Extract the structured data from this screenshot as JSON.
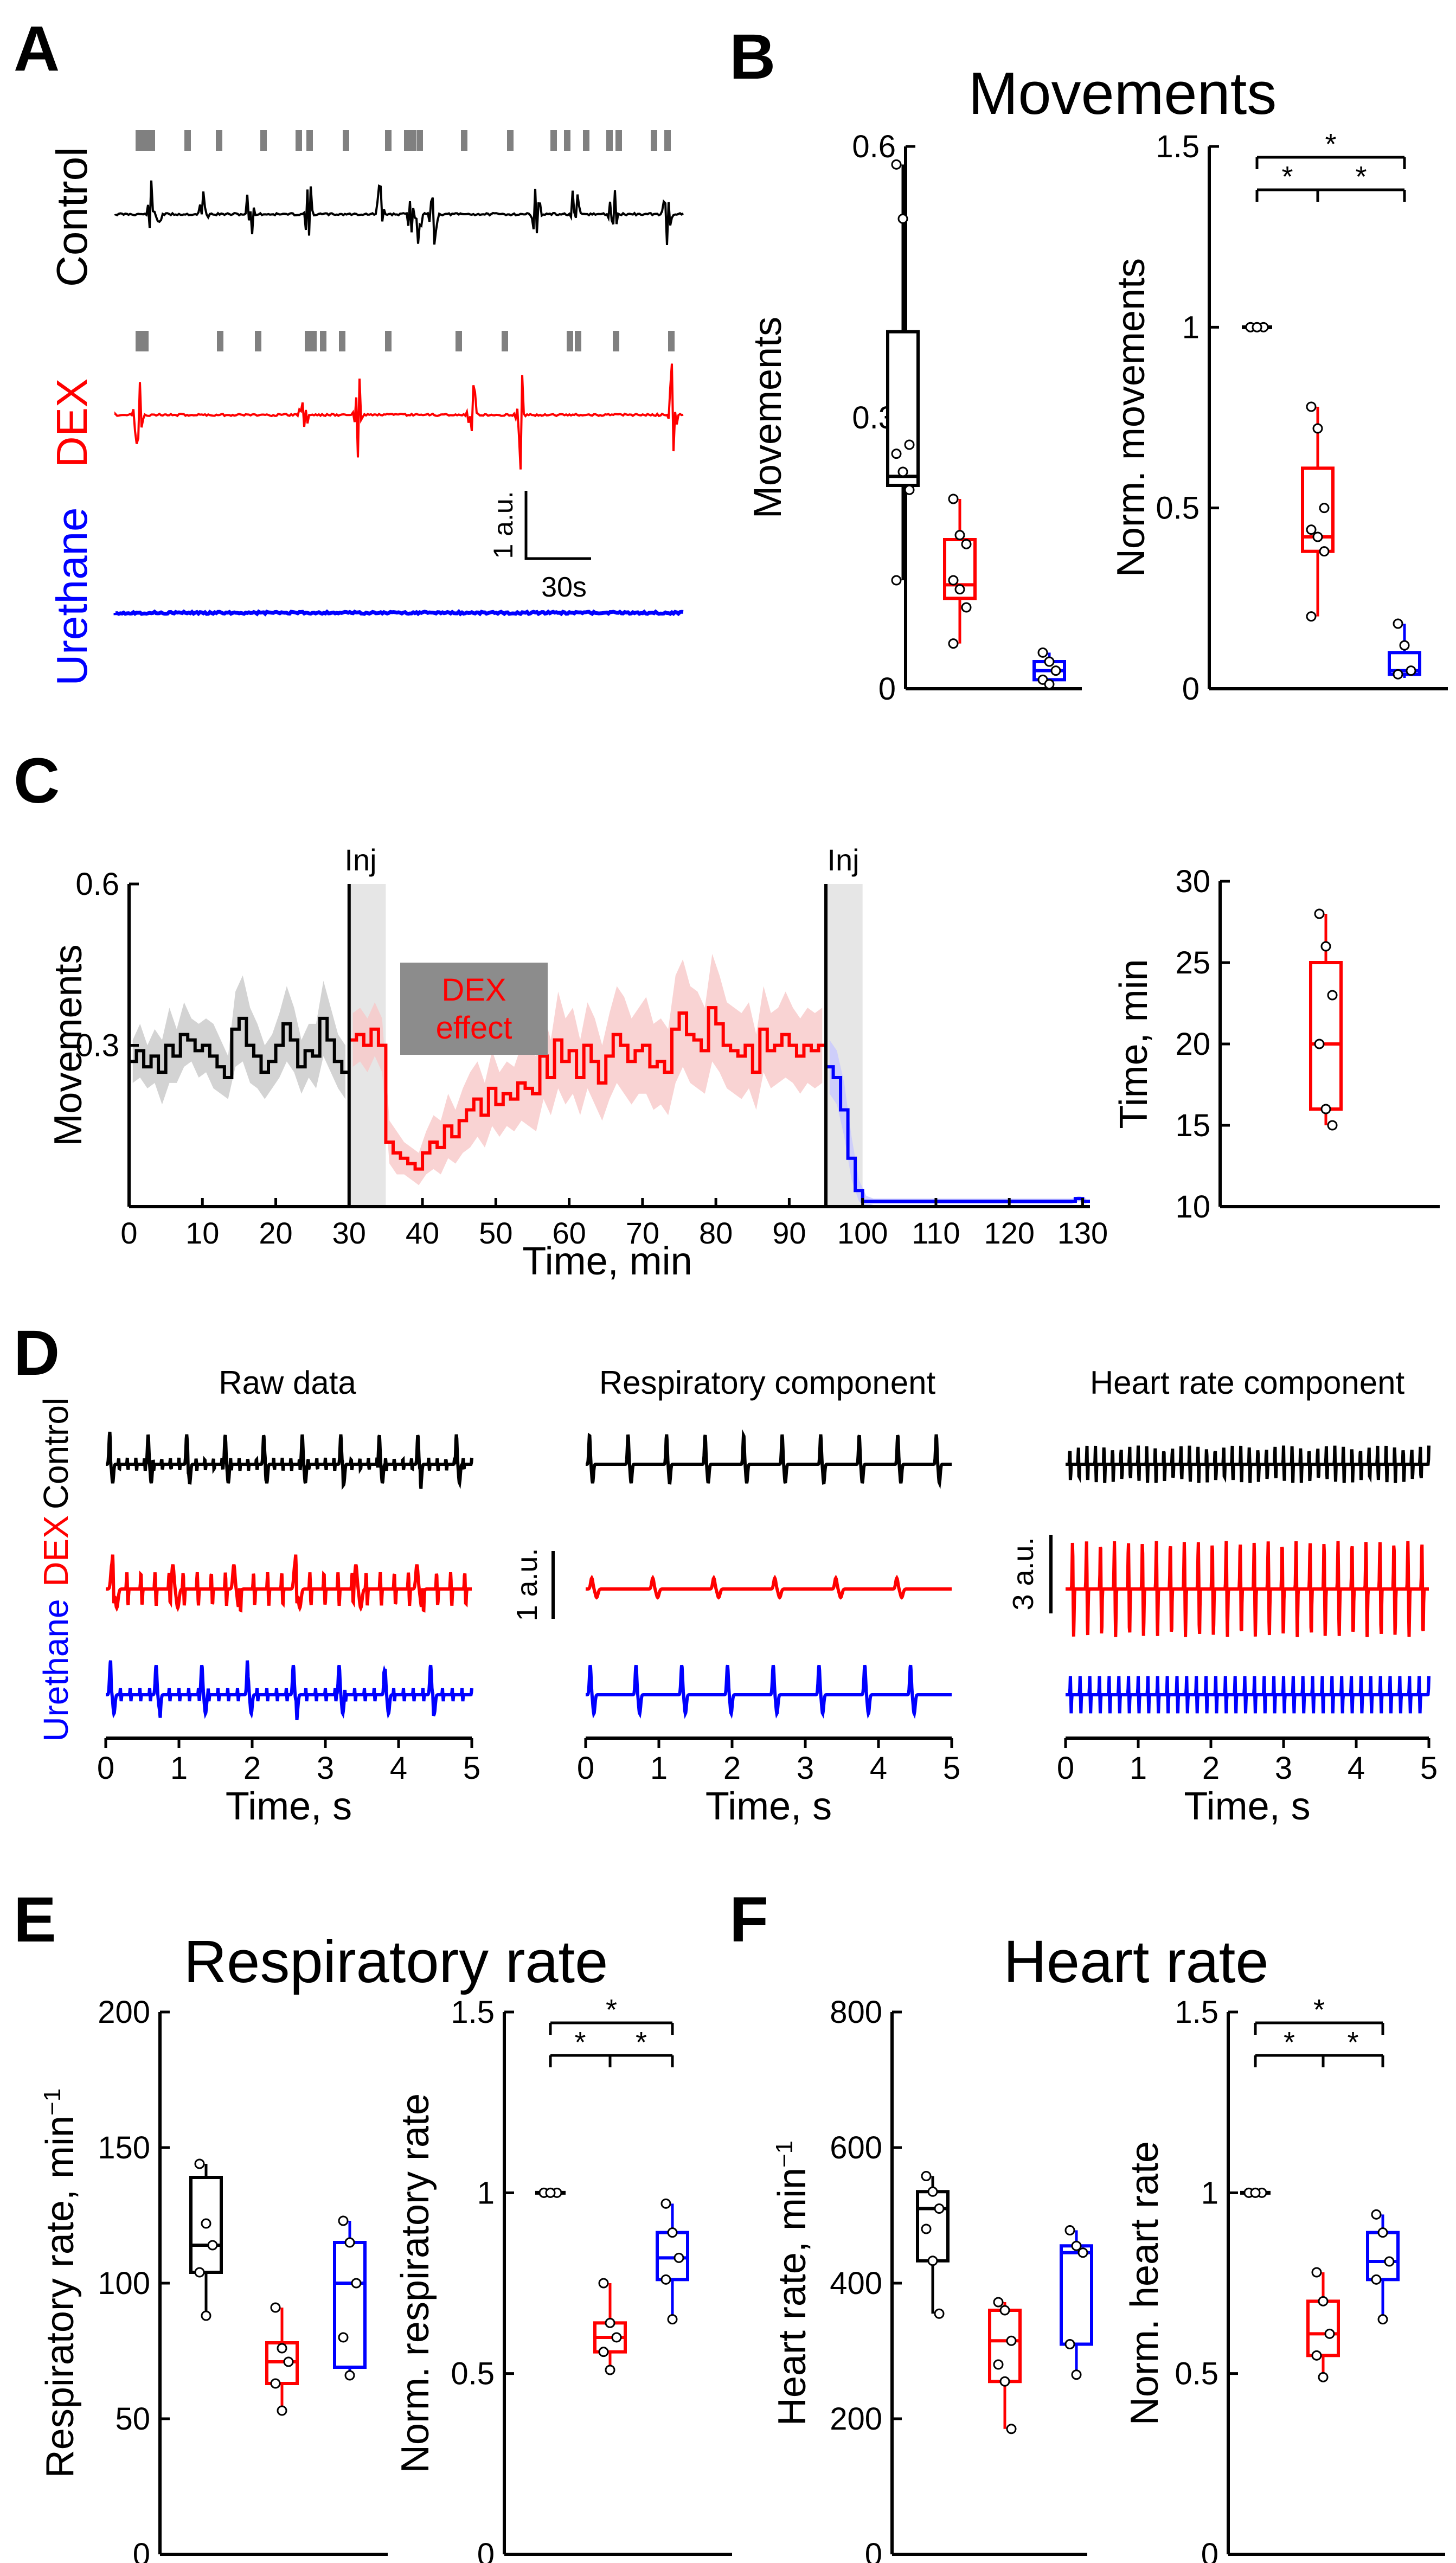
{
  "colors": {
    "control": "#000000",
    "dex": "#ff0000",
    "urethane": "#0000ff",
    "grey": "#808080",
    "shade_grey": "#c8c8c8",
    "shade_red": "#f8c8c8",
    "inj_shade": "#e6e6e6"
  },
  "panels": {
    "A": "A",
    "B": "B",
    "C": "C",
    "D": "D",
    "E": "E",
    "F": "F"
  },
  "A": {
    "labels": {
      "control": "Control",
      "dex": "DEX",
      "urethane": "Urethane"
    },
    "scale": {
      "y": "1 a.u.",
      "x": "30s"
    }
  },
  "B": {
    "title": "Movements"
  },
  "C": {
    "inj1": "Inj",
    "inj2": "Inj",
    "dex_effect_line1": "DEX",
    "dex_effect_line2": "effect"
  },
  "D": {
    "titles": [
      "Raw data",
      "Respiratory component",
      "Heart rate component"
    ],
    "row_labels": {
      "urethane": "Urethane",
      "dex": "DEX",
      "control": "Control"
    },
    "scale1": "1 a.u.",
    "scale2": "3 a.u."
  },
  "E": {
    "title": "Respiratory rate"
  },
  "F": {
    "title": "Heart rate"
  },
  "chart_data": [
    {
      "id": "B1",
      "type": "box",
      "title": "Movements",
      "ylabel": "Movements",
      "ylim": [
        0,
        0.6
      ],
      "yticks": [
        0,
        0.3,
        0.6
      ],
      "tick_labels": [
        "0",
        "0.3",
        "0.6"
      ],
      "groups": [
        {
          "name": "Control",
          "color": "control",
          "q1": 0.225,
          "median": 0.235,
          "q3": 0.395,
          "whisker_low": 0.12,
          "whisker_high": 0.58,
          "points": [
            0.58,
            0.52,
            0.27,
            0.26,
            0.24,
            0.22,
            0.12
          ]
        },
        {
          "name": "DEX",
          "color": "dex",
          "q1": 0.1,
          "median": 0.115,
          "q3": 0.165,
          "whisker_low": 0.05,
          "whisker_high": 0.21,
          "points": [
            0.21,
            0.17,
            0.16,
            0.12,
            0.11,
            0.09,
            0.05
          ]
        },
        {
          "name": "Urethane",
          "color": "urethane",
          "q1": 0.01,
          "median": 0.02,
          "q3": 0.03,
          "whisker_low": 0.005,
          "whisker_high": 0.04,
          "points": [
            0.04,
            0.03,
            0.02,
            0.01,
            0.005
          ]
        }
      ]
    },
    {
      "id": "B2",
      "type": "box",
      "ylabel": "Norm. movements",
      "ylim": [
        0,
        1.5
      ],
      "yticks": [
        0,
        0.5,
        1,
        1.5
      ],
      "tick_labels": [
        "0",
        "0.5",
        "1",
        "1.5"
      ],
      "groups": [
        {
          "name": "Control",
          "color": "control",
          "q1": 1,
          "median": 1,
          "q3": 1,
          "whisker_low": 1,
          "whisker_high": 1,
          "points": [
            1,
            1,
            1,
            1,
            1
          ]
        },
        {
          "name": "DEX",
          "color": "dex",
          "q1": 0.38,
          "median": 0.42,
          "q3": 0.61,
          "whisker_low": 0.2,
          "whisker_high": 0.78,
          "points": [
            0.78,
            0.72,
            0.5,
            0.44,
            0.42,
            0.38,
            0.2
          ]
        },
        {
          "name": "Urethane",
          "color": "urethane",
          "q1": 0.04,
          "median": 0.05,
          "q3": 0.1,
          "whisker_low": 0.03,
          "whisker_high": 0.18,
          "points": [
            0.18,
            0.12,
            0.05,
            0.04
          ]
        }
      ],
      "significance": [
        {
          "from": 0,
          "to": 1,
          "y": 1.38,
          "label": "*"
        },
        {
          "from": 1,
          "to": 2,
          "y": 1.38,
          "label": "*"
        },
        {
          "from": 0,
          "to": 2,
          "y": 1.47,
          "label": "*"
        }
      ]
    },
    {
      "id": "C1",
      "type": "line",
      "ylabel": "Movements",
      "xlabel": "Time, min",
      "xlim": [
        0,
        131
      ],
      "ylim": [
        0,
        0.6
      ],
      "xticks": [
        0,
        10,
        20,
        30,
        40,
        50,
        60,
        70,
        80,
        90,
        100,
        110,
        120,
        130
      ],
      "xtick_labels": [
        "0",
        "10",
        "20",
        "30",
        "40",
        "50",
        "60",
        "70",
        "80",
        "90",
        "100",
        "110",
        "120",
        "130"
      ],
      "yticks": [
        0.3,
        0.6
      ],
      "ytick_labels": [
        "0.3",
        "0.6"
      ],
      "injections": [
        30,
        95
      ],
      "inj_shade": [
        [
          30,
          35
        ],
        [
          95,
          100
        ]
      ],
      "series": [
        {
          "name": "Control",
          "color": "control",
          "x_start": 0,
          "x_step": 1,
          "values": [
            0.27,
            0.29,
            0.26,
            0.28,
            0.25,
            0.3,
            0.28,
            0.32,
            0.31,
            0.29,
            0.3,
            0.28,
            0.26,
            0.24,
            0.33,
            0.35,
            0.3,
            0.28,
            0.25,
            0.27,
            0.3,
            0.34,
            0.31,
            0.26,
            0.29,
            0.28,
            0.35,
            0.31,
            0.27,
            0.25
          ],
          "spread": [
            0.04,
            0.05,
            0.04,
            0.05,
            0.06,
            0.07,
            0.05,
            0.06,
            0.04,
            0.05,
            0.05,
            0.06,
            0.05,
            0.04,
            0.07,
            0.08,
            0.07,
            0.06,
            0.05,
            0.05,
            0.06,
            0.07,
            0.06,
            0.05,
            0.05,
            0.06,
            0.07,
            0.06,
            0.05,
            0.05
          ]
        },
        {
          "name": "DEX",
          "color": "dex",
          "x_start": 30,
          "x_step": 1,
          "values": [
            0.31,
            0.32,
            0.3,
            0.33,
            0.3,
            0.12,
            0.1,
            0.09,
            0.08,
            0.07,
            0.1,
            0.12,
            0.11,
            0.15,
            0.13,
            0.16,
            0.18,
            0.2,
            0.17,
            0.22,
            0.19,
            0.21,
            0.2,
            0.23,
            0.22,
            0.21,
            0.28,
            0.24,
            0.31,
            0.27,
            0.29,
            0.24,
            0.3,
            0.27,
            0.23,
            0.28,
            0.32,
            0.3,
            0.27,
            0.29,
            0.3,
            0.26,
            0.27,
            0.25,
            0.33,
            0.36,
            0.32,
            0.31,
            0.29,
            0.37,
            0.34,
            0.3,
            0.29,
            0.28,
            0.3,
            0.25,
            0.33,
            0.29,
            0.3,
            0.32,
            0.3,
            0.28,
            0.3,
            0.29,
            0.3
          ],
          "spread": [
            0.05,
            0.05,
            0.05,
            0.05,
            0.05,
            0.04,
            0.04,
            0.03,
            0.03,
            0.03,
            0.04,
            0.05,
            0.05,
            0.06,
            0.05,
            0.06,
            0.07,
            0.07,
            0.06,
            0.07,
            0.06,
            0.06,
            0.06,
            0.07,
            0.07,
            0.07,
            0.08,
            0.07,
            0.09,
            0.08,
            0.08,
            0.07,
            0.08,
            0.08,
            0.07,
            0.08,
            0.09,
            0.09,
            0.08,
            0.08,
            0.09,
            0.08,
            0.08,
            0.08,
            0.1,
            0.1,
            0.09,
            0.09,
            0.08,
            0.1,
            0.09,
            0.08,
            0.08,
            0.08,
            0.08,
            0.07,
            0.08,
            0.07,
            0.07,
            0.08,
            0.07,
            0.07,
            0.07,
            0.07,
            0.07
          ]
        },
        {
          "name": "Urethane",
          "color": "urethane",
          "x_start": 95,
          "x_step": 1,
          "values": [
            0.26,
            0.24,
            0.18,
            0.09,
            0.03,
            0.01,
            0.01,
            0.01,
            0.01,
            0.01,
            0.01,
            0.01,
            0.01,
            0.01,
            0.01,
            0.01,
            0.01,
            0.01,
            0.01,
            0.01,
            0.01,
            0.01,
            0.01,
            0.01,
            0.01,
            0.01,
            0.01,
            0.01,
            0.01,
            0.01,
            0.01,
            0.01,
            0.01,
            0.01,
            0.015,
            0.01
          ],
          "spread": [
            0.05,
            0.05,
            0.05,
            0.04,
            0.02,
            0.01,
            0.005,
            0.005,
            0.005,
            0.005,
            0.005,
            0.005,
            0.005,
            0.005,
            0.005,
            0.005,
            0.005,
            0.005,
            0.005,
            0.005,
            0.005,
            0.005,
            0.005,
            0.005,
            0.005,
            0.005,
            0.005,
            0.005,
            0.005,
            0.005,
            0.005,
            0.005,
            0.005,
            0.005,
            0.005,
            0.005
          ]
        }
      ]
    },
    {
      "id": "C2",
      "type": "box",
      "ylabel": "Time, min",
      "ylim": [
        10,
        30
      ],
      "yticks": [
        10,
        15,
        20,
        25,
        30
      ],
      "tick_labels": [
        "10",
        "15",
        "20",
        "25",
        "30"
      ],
      "groups": [
        {
          "name": "DEX",
          "color": "dex",
          "q1": 16,
          "median": 20,
          "q3": 25,
          "whisker_low": 15,
          "whisker_high": 28,
          "points": [
            28,
            26,
            23,
            20,
            16,
            15
          ]
        }
      ]
    },
    {
      "id": "D",
      "type": "line",
      "xlabel": "Time, s",
      "xlim": [
        0,
        5
      ],
      "xticks": [
        0,
        1,
        2,
        3,
        4,
        5
      ],
      "xtick_labels": [
        "0",
        "1",
        "2",
        "3",
        "4",
        "5"
      ],
      "panels": [
        "Raw data",
        "Respiratory component",
        "Heart rate component"
      ],
      "series": [
        "Control",
        "DEX",
        "Urethane"
      ],
      "respiratory_rate_hz": {
        "Control": 1.9,
        "DEX": 1.2,
        "Urethane": 1.6
      },
      "heart_rate_hz": {
        "Control": 8.5,
        "DEX": 5.2,
        "Urethane": 7.5
      }
    },
    {
      "id": "E1",
      "type": "box",
      "title": "Respiratory rate",
      "ylabel": "Respiratory rate, min",
      "ylabel_sup": "−1",
      "ylim": [
        0,
        200
      ],
      "yticks": [
        0,
        50,
        100,
        150,
        200
      ],
      "tick_labels": [
        "0",
        "50",
        "100",
        "150",
        "200"
      ],
      "groups": [
        {
          "name": "Control",
          "color": "control",
          "q1": 104,
          "median": 114,
          "q3": 139,
          "whisker_low": 88,
          "whisker_high": 144,
          "points": [
            144,
            122,
            114,
            104,
            88
          ]
        },
        {
          "name": "DEX",
          "color": "dex",
          "q1": 63,
          "median": 71,
          "q3": 78,
          "whisker_low": 53,
          "whisker_high": 91,
          "points": [
            91,
            76,
            71,
            63,
            53
          ]
        },
        {
          "name": "Urethane",
          "color": "urethane",
          "q1": 69,
          "median": 100,
          "q3": 115,
          "whisker_low": 66,
          "whisker_high": 123,
          "points": [
            123,
            115,
            100,
            80,
            66
          ]
        }
      ]
    },
    {
      "id": "E2",
      "type": "box",
      "ylabel": "Norm. respiratory rate",
      "ylim": [
        0,
        1.5
      ],
      "yticks": [
        0,
        0.5,
        1,
        1.5
      ],
      "tick_labels": [
        "0",
        "0.5",
        "1",
        "1.5"
      ],
      "groups": [
        {
          "name": "Control",
          "color": "control",
          "q1": 1,
          "median": 1,
          "q3": 1,
          "whisker_low": 1,
          "whisker_high": 1,
          "points": [
            1,
            1,
            1,
            1,
            1
          ]
        },
        {
          "name": "DEX",
          "color": "dex",
          "q1": 0.56,
          "median": 0.6,
          "q3": 0.64,
          "whisker_low": 0.51,
          "whisker_high": 0.75,
          "points": [
            0.75,
            0.64,
            0.6,
            0.56,
            0.51
          ]
        },
        {
          "name": "Urethane",
          "color": "urethane",
          "q1": 0.76,
          "median": 0.82,
          "q3": 0.89,
          "whisker_low": 0.65,
          "whisker_high": 0.97,
          "points": [
            0.97,
            0.89,
            0.82,
            0.76,
            0.65
          ]
        }
      ],
      "significance": [
        {
          "from": 0,
          "to": 1,
          "y": 1.38,
          "label": "*"
        },
        {
          "from": 1,
          "to": 2,
          "y": 1.38,
          "label": "*"
        },
        {
          "from": 0,
          "to": 2,
          "y": 1.47,
          "label": "*"
        }
      ]
    },
    {
      "id": "F1",
      "type": "box",
      "title": "Heart rate",
      "ylabel": "Heart rate, min",
      "ylabel_sup": "−1",
      "ylim": [
        0,
        800
      ],
      "yticks": [
        0,
        200,
        400,
        600,
        800
      ],
      "tick_labels": [
        "0",
        "200",
        "400",
        "600",
        "800"
      ],
      "groups": [
        {
          "name": "Control",
          "color": "control",
          "q1": 433,
          "median": 510,
          "q3": 535,
          "whisker_low": 355,
          "whisker_high": 558,
          "points": [
            558,
            535,
            510,
            480,
            433,
            355
          ]
        },
        {
          "name": "DEX",
          "color": "dex",
          "q1": 255,
          "median": 315,
          "q3": 360,
          "whisker_low": 185,
          "whisker_high": 372,
          "points": [
            372,
            360,
            315,
            280,
            255,
            185
          ]
        },
        {
          "name": "Urethane",
          "color": "urethane",
          "q1": 310,
          "median": 445,
          "q3": 455,
          "whisker_low": 265,
          "whisker_high": 478,
          "points": [
            478,
            455,
            445,
            310,
            265
          ]
        }
      ]
    },
    {
      "id": "F2",
      "type": "box",
      "ylabel": "Norm. heart rate",
      "ylim": [
        0,
        1.5
      ],
      "yticks": [
        0,
        0.5,
        1,
        1.5
      ],
      "tick_labels": [
        "0",
        "0.5",
        "1",
        "1.5"
      ],
      "groups": [
        {
          "name": "Control",
          "color": "control",
          "q1": 1,
          "median": 1,
          "q3": 1,
          "whisker_low": 1,
          "whisker_high": 1,
          "points": [
            1,
            1,
            1,
            1,
            1
          ]
        },
        {
          "name": "DEX",
          "color": "dex",
          "q1": 0.55,
          "median": 0.61,
          "q3": 0.7,
          "whisker_low": 0.49,
          "whisker_high": 0.78,
          "points": [
            0.78,
            0.7,
            0.61,
            0.55,
            0.49
          ]
        },
        {
          "name": "Urethane",
          "color": "urethane",
          "q1": 0.76,
          "median": 0.81,
          "q3": 0.89,
          "whisker_low": 0.65,
          "whisker_high": 0.94,
          "points": [
            0.94,
            0.89,
            0.81,
            0.76,
            0.65
          ]
        }
      ],
      "significance": [
        {
          "from": 0,
          "to": 1,
          "y": 1.38,
          "label": "*"
        },
        {
          "from": 1,
          "to": 2,
          "y": 1.38,
          "label": "*"
        },
        {
          "from": 0,
          "to": 2,
          "y": 1.47,
          "label": "*"
        }
      ]
    }
  ]
}
